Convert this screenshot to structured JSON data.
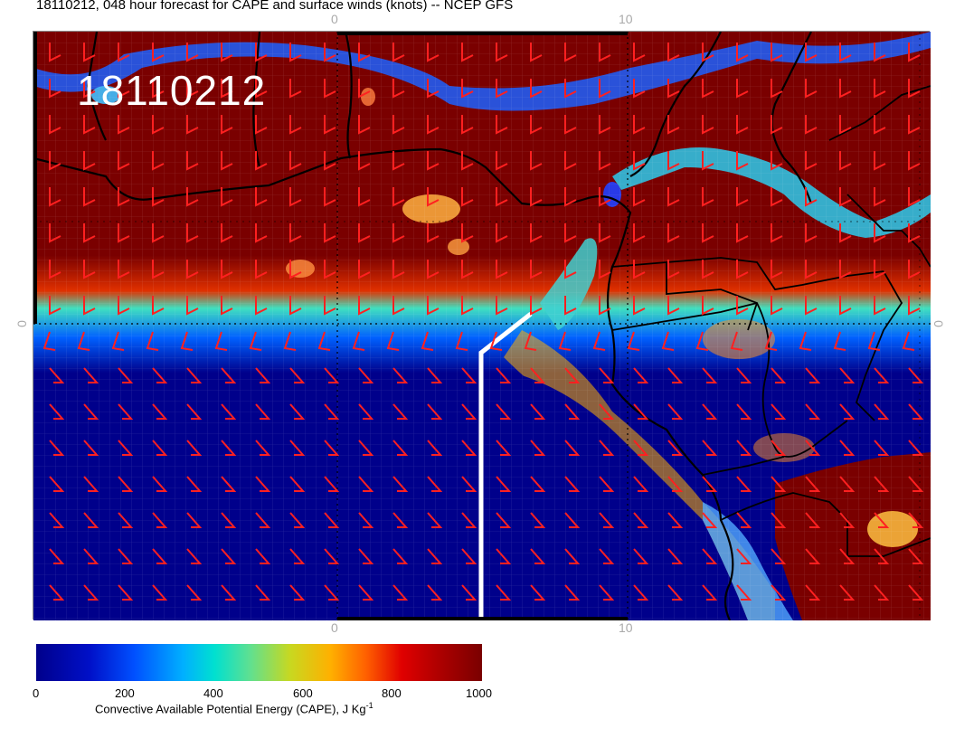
{
  "header": {
    "title": "18110212, 048 hour forecast for CAPE and surface winds (knots) -- NCEP GFS",
    "stamp": "18110212"
  },
  "map": {
    "type": "CAPE forecast map",
    "region": "Gulf of Guinea / West-Central Africa",
    "ticks": {
      "top": [
        "0",
        "10"
      ],
      "bottom": [
        "0",
        "10"
      ],
      "left": [
        "0"
      ],
      "right": [
        "0"
      ]
    },
    "colors": {
      "high": "#7a0000",
      "low": "#00008b",
      "wind_barbs": "#ff2020",
      "coastline": "#000000",
      "track": "#ffffff"
    }
  },
  "colorbar": {
    "labels": [
      "0",
      "200",
      "400",
      "600",
      "800",
      "1000"
    ],
    "title": "Convective Available Potential Energy (CAPE), J Kg",
    "unit_superscript": "-1"
  },
  "chart_data": {
    "type": "heatmap",
    "title": "18110212, 048 hour forecast for CAPE and surface winds (knots) -- NCEP GFS",
    "colorbar_range": [
      0,
      1000
    ],
    "colorbar_ticks": [
      0,
      200,
      400,
      600,
      800,
      1000
    ],
    "colorbar_label": "Convective Available Potential Energy (CAPE), J Kg-1",
    "x_ticks": [
      0,
      10
    ],
    "y_ticks": [
      0
    ]
  }
}
